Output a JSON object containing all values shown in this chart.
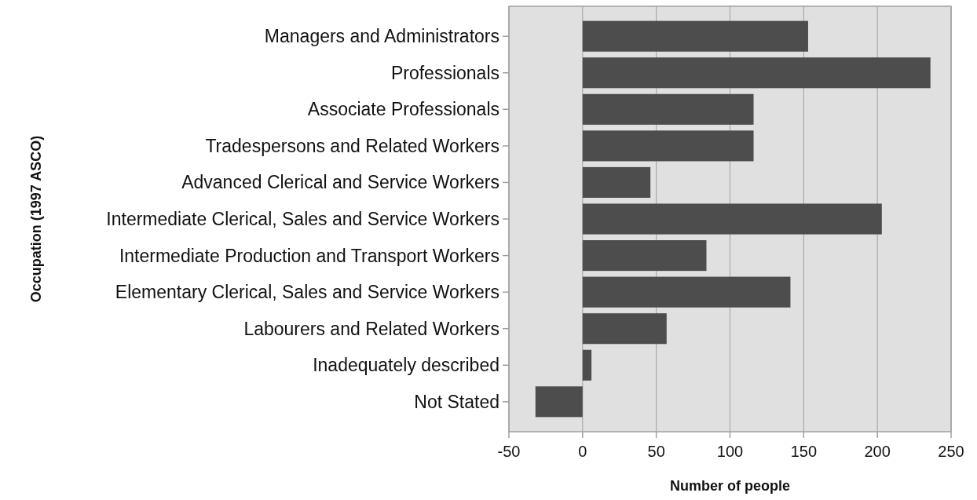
{
  "chart_data": {
    "type": "bar",
    "orientation": "horizontal",
    "xlabel": "Number of people",
    "ylabel": "Occupation (1997 ASCO)",
    "categories": [
      "Managers and Administrators",
      "Professionals",
      "Associate Professionals",
      "Tradespersons and Related Workers",
      "Advanced Clerical and Service Workers",
      "Intermediate Clerical, Sales and Service Workers",
      "Intermediate Production and Transport Workers",
      "Elementary Clerical, Sales and Service Workers",
      "Labourers and Related Workers",
      "Inadequately described",
      "Not Stated"
    ],
    "values": [
      153,
      236,
      116,
      116,
      46,
      203,
      84,
      141,
      57,
      6,
      -32
    ],
    "color": "#4d4d4d",
    "xlim": [
      -50,
      250
    ],
    "xticks": [
      -50,
      0,
      50,
      100,
      150,
      200,
      250
    ],
    "grid": "x"
  }
}
